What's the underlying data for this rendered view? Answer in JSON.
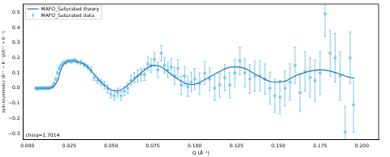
{
  "chart_data": {
    "type": "scatter",
    "x_label": "Q (Å⁻¹)",
    "y_label": "spin asymmetry (R⁺⁺ − R⁻⁻)/(R⁺⁺ + R⁻⁻)",
    "annotation": "chisq=1.7014",
    "legend": "upper left",
    "grid": false,
    "xlim": [
      -0.0025,
      0.21
    ],
    "ylim": [
      -0.34,
      0.555
    ],
    "xticks": [
      {
        "value": 0,
        "label": "0.000"
      },
      {
        "value": 0.025,
        "label": "0.025"
      },
      {
        "value": 0.05,
        "label": "0.050"
      },
      {
        "value": 0.075,
        "label": "0.075"
      },
      {
        "value": 0.1,
        "label": "0.100"
      },
      {
        "value": 0.125,
        "label": "0.125"
      },
      {
        "value": 0.15,
        "label": "0.150"
      },
      {
        "value": 0.175,
        "label": "0.175"
      },
      {
        "value": 0.2,
        "label": "0.200"
      }
    ],
    "yticks": [
      {
        "value": -0.3,
        "label": "−0.3"
      },
      {
        "value": -0.2,
        "label": "−0.2"
      },
      {
        "value": -0.1,
        "label": "−0.1"
      },
      {
        "value": 0,
        "label": "0.0"
      },
      0.1,
      0.2,
      0.3,
      0.4,
      0.5
    ],
    "series": [
      {
        "name": "MAFO_Saturated theory",
        "type": "line",
        "color": "#1f77b4",
        "line_style": "solid",
        "x": [
          0.005,
          0.01,
          0.015,
          0.018,
          0.02,
          0.022,
          0.025,
          0.03,
          0.035,
          0.04,
          0.045,
          0.05,
          0.055,
          0.06,
          0.065,
          0.07,
          0.075,
          0.08,
          0.085,
          0.09,
          0.095,
          0.1,
          0.105,
          0.11,
          0.115,
          0.12,
          0.125,
          0.13,
          0.135,
          0.14,
          0.145,
          0.15,
          0.155,
          0.16,
          0.165,
          0.17,
          0.175,
          0.18,
          0.185,
          0.19,
          0.195
        ],
        "values": [
          0.0,
          0.0,
          0.005,
          0.05,
          0.12,
          0.16,
          0.18,
          0.175,
          0.15,
          0.09,
          0.03,
          -0.01,
          -0.015,
          0.02,
          0.07,
          0.12,
          0.15,
          0.14,
          0.1,
          0.06,
          0.03,
          0.025,
          0.05,
          0.08,
          0.11,
          0.135,
          0.14,
          0.13,
          0.1,
          0.07,
          0.045,
          0.04,
          0.05,
          0.08,
          0.1,
          0.115,
          0.12,
          0.115,
          0.1,
          0.08,
          0.065
        ]
      },
      {
        "name": "MAFO_Saturated data",
        "type": "scatter",
        "color": "#7ec8f0",
        "marker": "circle",
        "x": [
          0.005,
          0.006,
          0.007,
          0.008,
          0.009,
          0.01,
          0.011,
          0.012,
          0.013,
          0.014,
          0.015,
          0.016,
          0.017,
          0.018,
          0.019,
          0.02,
          0.021,
          0.022,
          0.023,
          0.024,
          0.025,
          0.026,
          0.027,
          0.028,
          0.029,
          0.03,
          0.032,
          0.034,
          0.036,
          0.038,
          0.04,
          0.042,
          0.044,
          0.046,
          0.048,
          0.05,
          0.052,
          0.054,
          0.056,
          0.058,
          0.06,
          0.062,
          0.064,
          0.066,
          0.068,
          0.07,
          0.072,
          0.074,
          0.076,
          0.078,
          0.08,
          0.082,
          0.084,
          0.086,
          0.088,
          0.09,
          0.092,
          0.094,
          0.096,
          0.098,
          0.1,
          0.103,
          0.106,
          0.109,
          0.112,
          0.115,
          0.118,
          0.121,
          0.124,
          0.127,
          0.13,
          0.133,
          0.136,
          0.139,
          0.142,
          0.145,
          0.148,
          0.151,
          0.154,
          0.157,
          0.16,
          0.163,
          0.166,
          0.169,
          0.172,
          0.175,
          0.178,
          0.181,
          0.184,
          0.187,
          0.19,
          0.193,
          0.195
        ],
        "values": [
          0.0,
          -0.005,
          0.0,
          0.0,
          0.0,
          0.0,
          0.0,
          0.0,
          0.0,
          0.005,
          0.01,
          0.03,
          0.06,
          0.1,
          0.13,
          0.15,
          0.16,
          0.17,
          0.17,
          0.18,
          0.18,
          0.175,
          0.18,
          0.185,
          0.18,
          0.17,
          0.17,
          0.155,
          0.14,
          0.12,
          0.07,
          0.05,
          0.04,
          0.02,
          -0.005,
          -0.04,
          -0.05,
          -0.03,
          -0.05,
          -0.02,
          0.0,
          0.05,
          0.07,
          0.08,
          0.09,
          0.09,
          0.16,
          0.15,
          0.19,
          0.12,
          0.23,
          0.15,
          0.12,
          0.14,
          0.08,
          0.13,
          0.02,
          0.08,
          0.01,
          0.04,
          0.06,
          0.03,
          0.1,
          0.06,
          0.0,
          0.02,
          0.07,
          0.02,
          0.1,
          0.18,
          0.1,
          0.06,
          0.08,
          0.08,
          0.06,
          0.0,
          -0.05,
          -0.06,
          0.0,
          0.04,
          0.15,
          -0.03,
          0.11,
          0.07,
          0.05,
          0.1,
          0.49,
          0.23,
          0.2,
          0.08,
          -0.29,
          0.2,
          -0.11
        ],
        "errors": [
          0.01,
          0.01,
          0.01,
          0.01,
          0.01,
          0.01,
          0.01,
          0.01,
          0.01,
          0.01,
          0.01,
          0.01,
          0.01,
          0.01,
          0.01,
          0.01,
          0.01,
          0.01,
          0.01,
          0.01,
          0.01,
          0.01,
          0.01,
          0.01,
          0.01,
          0.01,
          0.015,
          0.015,
          0.015,
          0.02,
          0.02,
          0.02,
          0.02,
          0.025,
          0.025,
          0.025,
          0.03,
          0.03,
          0.03,
          0.03,
          0.035,
          0.035,
          0.035,
          0.04,
          0.04,
          0.04,
          0.045,
          0.045,
          0.045,
          0.05,
          0.05,
          0.05,
          0.05,
          0.055,
          0.055,
          0.06,
          0.06,
          0.06,
          0.065,
          0.065,
          0.07,
          0.07,
          0.075,
          0.075,
          0.08,
          0.08,
          0.085,
          0.085,
          0.09,
          0.09,
          0.095,
          0.095,
          0.1,
          0.1,
          0.1,
          0.105,
          0.11,
          0.11,
          0.115,
          0.12,
          0.12,
          0.125,
          0.13,
          0.13,
          0.135,
          0.14,
          0.15,
          0.15,
          0.16,
          0.16,
          0.17,
          0.17,
          0.18
        ]
      }
    ]
  }
}
